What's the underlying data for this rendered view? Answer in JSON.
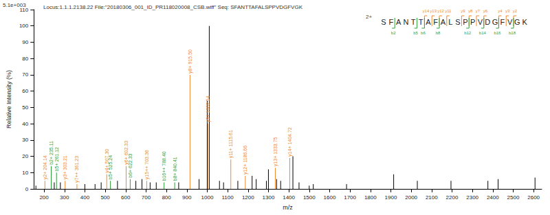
{
  "chart_data": {
    "type": "bar",
    "title": "Locus:1.1.1.2138.22 File:\"20180306_001_ID_PR118020008_CSB.wiff\" Seq: SFANTTAFALSPPVDGFVGK",
    "scale_label": "5.1e+003",
    "x_label": "m/z",
    "y_label": "Relative Intensity (%)",
    "xlim": [
      150,
      2640
    ],
    "xticks": [
      200,
      300,
      400,
      500,
      600,
      700,
      800,
      900,
      1000,
      1100,
      1200,
      1300,
      1400,
      1500,
      1600,
      1700,
      1800,
      1900,
      2000,
      2100,
      2200,
      2300,
      2400,
      2500,
      2600
    ],
    "ylim": [
      0,
      110
    ],
    "yticks": [
      0,
      10,
      20,
      30,
      40,
      50,
      60,
      70,
      80,
      90,
      100,
      110
    ],
    "grid": false,
    "data_labels": true,
    "series": [
      {
        "color": "#f0882a",
        "x": [
          204.14,
          303.21,
          361.23,
          507.3,
          602.33,
          703.36,
          915.5,
          1002.54,
          1115.61,
          1186.66,
          1333.75,
          1404.72
        ],
        "values": [
          5,
          5,
          3,
          9,
          14,
          5,
          70,
          40,
          18,
          8,
          13,
          19
        ],
        "value_labels": [
          "y2+ 204.14",
          "y3+ 303.21",
          "y7++ 361.23",
          "y4+ 507.30",
          "y6+ 602.33",
          "y15++ 703.36",
          "y8+ 915.50",
          "y9+ 1002.54",
          "y11+ 1115.61",
          "y12+ 1186.66",
          "y13+ 1333.75",
          "y14+ 1404.72"
        ]
      },
      {
        "color": "#2e9e3a",
        "x": [
          235.11,
          261.12,
          525.24,
          622.33,
          788.4,
          840.41
        ],
        "values": [
          14,
          10,
          5,
          6,
          4,
          4
        ],
        "value_labels": [
          "b2+ 235.11",
          "b5+ 261.12",
          "b5+ 525.24",
          "b6+ 622.33",
          "b16++ 788.40",
          "b8+ 840.41"
        ]
      },
      {
        "color": "#000000",
        "x": [
          160,
          250,
          280,
          400,
          450,
          480,
          560,
          650,
          680,
          720,
          750,
          860,
          960,
          1000,
          1010,
          1060,
          1080,
          1150,
          1220,
          1240,
          1290,
          1300,
          1340,
          1360,
          1420,
          1450,
          1500,
          1520,
          1683,
          1914,
          2030,
          2195,
          2376,
          2426,
          2607
        ],
        "values": [
          2,
          4,
          4,
          3,
          3,
          4,
          5,
          5,
          6,
          4,
          4,
          4,
          6,
          54,
          100,
          5,
          4,
          5,
          8,
          6,
          5,
          12,
          6,
          5,
          20,
          4,
          2,
          3,
          3,
          9,
          5,
          5,
          5,
          6,
          7
        ]
      }
    ],
    "annotation": {
      "charge": "2+",
      "sequence": "SFANTTAFALSPPVDGFVGK",
      "y_ions": [
        "y14",
        "y13",
        "y12",
        "y11",
        "y9",
        "y8",
        "y7",
        "y6",
        "y4",
        "y3",
        "y2"
      ],
      "b_ions": [
        "b2",
        "b5",
        "b6",
        "b8",
        "b12",
        "b14",
        "b16",
        "b18"
      ]
    }
  }
}
